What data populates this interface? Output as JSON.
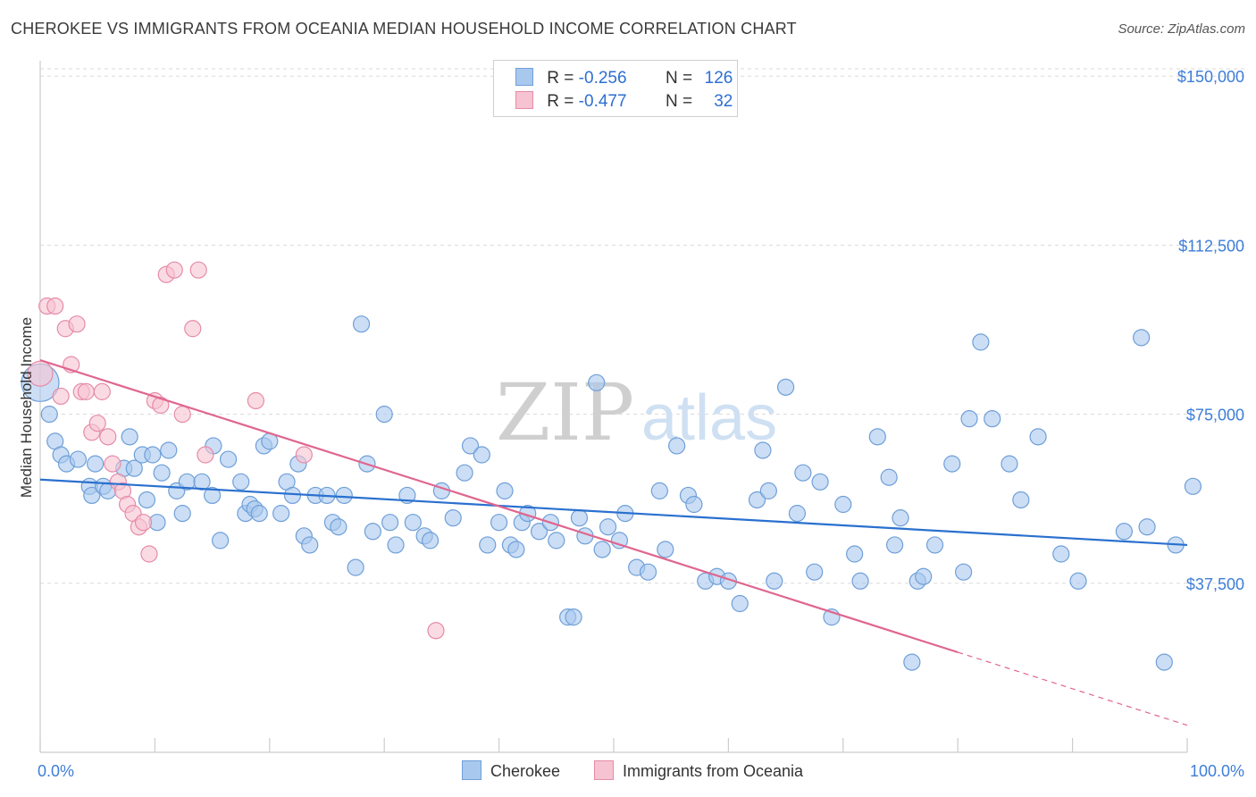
{
  "title": "CHEROKEE VS IMMIGRANTS FROM OCEANIA MEDIAN HOUSEHOLD INCOME CORRELATION CHART",
  "source": "Source: ZipAtlas.com",
  "watermark": {
    "zip": "ZIP",
    "atlas": "atlas"
  },
  "legend": {
    "r_label": "R =",
    "n_label": "N =",
    "series": [
      {
        "r": "-0.256",
        "n": "126"
      },
      {
        "r": "-0.477",
        "n": "32"
      }
    ]
  },
  "colors": {
    "blue_fill": "#a9c8ee",
    "blue_stroke": "#6f9fd8",
    "blue_line": "#2a70cf",
    "pink_fill": "#f6c3d2",
    "pink_stroke": "#e68ba8",
    "pink_line": "#e0668f",
    "grid": "#dadada",
    "axis_text": "#3d7ed8"
  },
  "chart_data": {
    "type": "scatter",
    "title": "CHEROKEE VS IMMIGRANTS FROM OCEANIA MEDIAN HOUSEHOLD INCOME CORRELATION CHART",
    "xlabel": "",
    "ylabel": "Median Household Income",
    "xlim": [
      0,
      100
    ],
    "ylim": [
      0,
      155000
    ],
    "x_tick_labels": [
      "0.0%",
      "100.0%"
    ],
    "y_ticks": [
      {
        "value": 150000,
        "label": "$150,000"
      },
      {
        "value": 112500,
        "label": "$112,500"
      },
      {
        "value": 75000,
        "label": "$75,000"
      },
      {
        "value": 37500,
        "label": "$37,500"
      }
    ],
    "series": [
      {
        "name": "Cherokee",
        "r": -0.256,
        "n": 126,
        "trend": {
          "x0": 0,
          "y0": 60500,
          "x1": 100,
          "y1": 46000,
          "dashed_from": null
        },
        "points": [
          [
            0,
            82
          ],
          [
            0.8,
            75
          ],
          [
            1.3,
            69
          ],
          [
            1.8,
            66
          ],
          [
            2.3,
            64
          ],
          [
            3.3,
            65
          ],
          [
            4.3,
            59
          ],
          [
            4.5,
            57
          ],
          [
            4.8,
            64
          ],
          [
            5.5,
            59
          ],
          [
            5.9,
            58
          ],
          [
            7.3,
            63
          ],
          [
            7.8,
            70
          ],
          [
            8.2,
            63
          ],
          [
            8.9,
            66
          ],
          [
            9.3,
            56
          ],
          [
            9.8,
            66
          ],
          [
            10.2,
            51
          ],
          [
            10.6,
            62
          ],
          [
            11.2,
            67
          ],
          [
            11.9,
            58
          ],
          [
            12.4,
            53
          ],
          [
            12.8,
            60
          ],
          [
            14.1,
            60
          ],
          [
            15.0,
            57
          ],
          [
            15.1,
            68
          ],
          [
            15.7,
            47
          ],
          [
            16.4,
            65
          ],
          [
            17.5,
            60
          ],
          [
            17.9,
            53
          ],
          [
            18.3,
            55
          ],
          [
            18.7,
            54
          ],
          [
            19.1,
            53
          ],
          [
            19.5,
            68
          ],
          [
            20.0,
            69
          ],
          [
            21.0,
            53
          ],
          [
            21.5,
            60
          ],
          [
            22.0,
            57
          ],
          [
            22.5,
            64
          ],
          [
            23.0,
            48
          ],
          [
            23.5,
            46
          ],
          [
            24.0,
            57
          ],
          [
            25.0,
            57
          ],
          [
            25.5,
            51
          ],
          [
            26.0,
            50
          ],
          [
            26.5,
            57
          ],
          [
            27.5,
            41
          ],
          [
            28.0,
            95
          ],
          [
            28.5,
            64
          ],
          [
            29.0,
            49
          ],
          [
            30.0,
            75
          ],
          [
            30.5,
            51
          ],
          [
            31.0,
            46
          ],
          [
            32.0,
            57
          ],
          [
            32.5,
            51
          ],
          [
            33.5,
            48
          ],
          [
            34.0,
            47
          ],
          [
            35.0,
            58
          ],
          [
            36.0,
            52
          ],
          [
            37.0,
            62
          ],
          [
            37.5,
            68
          ],
          [
            38.5,
            66
          ],
          [
            39.0,
            46
          ],
          [
            40.0,
            51
          ],
          [
            40.5,
            58
          ],
          [
            41.0,
            46
          ],
          [
            41.5,
            45
          ],
          [
            42.0,
            51
          ],
          [
            42.5,
            53
          ],
          [
            43.5,
            49
          ],
          [
            44.5,
            51
          ],
          [
            45.0,
            47
          ],
          [
            46.0,
            30
          ],
          [
            46.5,
            30
          ],
          [
            47.0,
            52
          ],
          [
            47.5,
            48
          ],
          [
            48.5,
            82
          ],
          [
            49.0,
            45
          ],
          [
            49.5,
            50
          ],
          [
            50.5,
            47
          ],
          [
            51.0,
            53
          ],
          [
            52.0,
            41
          ],
          [
            53.0,
            40
          ],
          [
            54.0,
            58
          ],
          [
            54.5,
            45
          ],
          [
            55.5,
            68
          ],
          [
            56.5,
            57
          ],
          [
            57.0,
            55
          ],
          [
            58.0,
            38
          ],
          [
            59.0,
            39
          ],
          [
            60.0,
            38
          ],
          [
            61.0,
            33
          ],
          [
            62.5,
            56
          ],
          [
            63.0,
            67
          ],
          [
            63.5,
            58
          ],
          [
            64.0,
            38
          ],
          [
            65.0,
            81
          ],
          [
            66.0,
            53
          ],
          [
            66.5,
            62
          ],
          [
            67.5,
            40
          ],
          [
            68.0,
            60
          ],
          [
            69.0,
            30
          ],
          [
            70.0,
            55
          ],
          [
            71.0,
            44
          ],
          [
            71.5,
            38
          ],
          [
            73.0,
            70
          ],
          [
            74.0,
            61
          ],
          [
            74.5,
            46
          ],
          [
            75.0,
            52
          ],
          [
            76.0,
            20
          ],
          [
            76.5,
            38
          ],
          [
            77.0,
            39
          ],
          [
            78.0,
            46
          ],
          [
            79.5,
            64
          ],
          [
            80.5,
            40
          ],
          [
            81.0,
            74
          ],
          [
            82.0,
            91
          ],
          [
            83.0,
            74
          ],
          [
            84.5,
            64
          ],
          [
            85.5,
            56
          ],
          [
            87.0,
            70
          ],
          [
            89.0,
            44
          ],
          [
            90.5,
            38
          ],
          [
            94.5,
            49
          ],
          [
            96.0,
            92
          ],
          [
            96.5,
            50
          ],
          [
            98.0,
            20
          ],
          [
            99.0,
            46
          ],
          [
            100.5,
            59
          ]
        ]
      },
      {
        "name": "Immigrants from Oceania",
        "r": -0.477,
        "n": 32,
        "trend": {
          "x0": 0,
          "y0": 87000,
          "x1": 100,
          "y1": 6000,
          "dashed_from": 80
        },
        "points": [
          [
            0,
            84
          ],
          [
            0.6,
            99
          ],
          [
            1.3,
            99
          ],
          [
            2.2,
            94
          ],
          [
            3.2,
            95
          ],
          [
            2.7,
            86
          ],
          [
            1.8,
            79
          ],
          [
            3.6,
            80
          ],
          [
            4.0,
            80
          ],
          [
            4.5,
            71
          ],
          [
            5.0,
            73
          ],
          [
            5.4,
            80
          ],
          [
            5.9,
            70
          ],
          [
            6.3,
            64
          ],
          [
            6.8,
            60
          ],
          [
            7.2,
            58
          ],
          [
            7.6,
            55
          ],
          [
            8.1,
            53
          ],
          [
            8.6,
            50
          ],
          [
            9.0,
            51
          ],
          [
            9.5,
            44
          ],
          [
            10.0,
            78
          ],
          [
            10.5,
            77
          ],
          [
            11.0,
            106
          ],
          [
            11.7,
            107
          ],
          [
            12.4,
            75
          ],
          [
            13.3,
            94
          ],
          [
            13.8,
            107
          ],
          [
            14.4,
            66
          ],
          [
            18.8,
            78
          ],
          [
            23.0,
            66
          ],
          [
            34.5,
            27
          ]
        ]
      }
    ]
  },
  "bottom_legend": [
    "Cherokee",
    "Immigrants from Oceania"
  ]
}
